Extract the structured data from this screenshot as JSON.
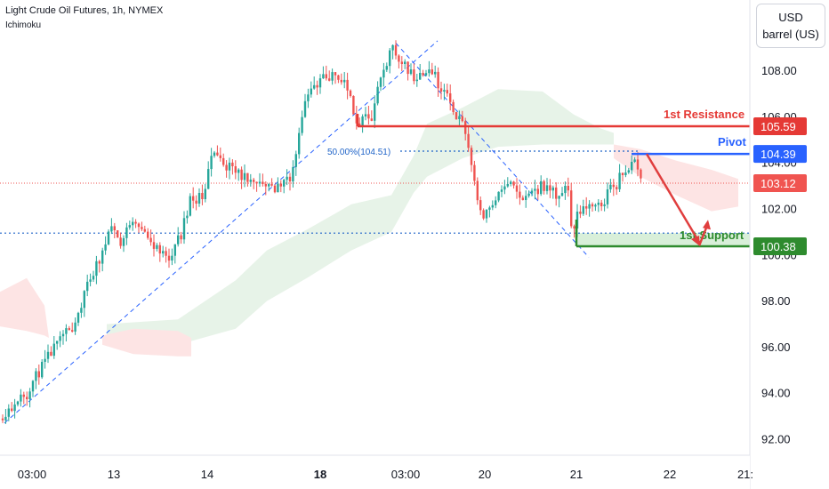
{
  "header": {
    "symbol_title": "Light Crude Oil Futures, 1h, NYMEX",
    "indicator": "Ichimoku"
  },
  "unit_button": {
    "currency": "USD",
    "unit": "barrel (US)"
  },
  "colors": {
    "up": "#26a69a",
    "down": "#ef5350",
    "resistance": "#e53935",
    "pivot": "#2962ff",
    "support": "#2e8b2e",
    "fib": "#1e63c8",
    "cloud_bull": "#e7f3e8",
    "cloud_bear": "#fde4e4"
  },
  "chart_data": {
    "type": "candlestick",
    "title": "Light Crude Oil Futures, 1h, NYMEX",
    "indicator": "Ichimoku",
    "x_ticks": [
      "03:00",
      "13",
      "14",
      "18",
      "03:00",
      "20",
      "21",
      "22",
      "21:"
    ],
    "y_ticks": [
      "92.00",
      "94.00",
      "96.00",
      "98.00",
      "100.00",
      "102.00",
      "104.00",
      "106.00",
      "108.00"
    ],
    "ylim": [
      91.3,
      110.0
    ],
    "current_price": "103.12",
    "fib_label": "50.00%(104.51)",
    "levels": [
      {
        "name": "1st Resistance",
        "value": "105.59"
      },
      {
        "name": "Pivot",
        "value": "104.39"
      },
      {
        "name": "1st Support",
        "value": "100.38"
      }
    ],
    "support_zone": [
      100.38,
      100.95
    ],
    "path": [
      [
        0,
        92.9
      ],
      [
        30,
        94.0
      ],
      [
        60,
        95.8
      ],
      [
        85,
        97.0
      ],
      [
        100,
        98.6
      ],
      [
        118,
        100.2
      ],
      [
        125,
        101.2
      ],
      [
        140,
        100.5
      ],
      [
        150,
        101.6
      ],
      [
        170,
        100.6
      ],
      [
        190,
        99.9
      ],
      [
        205,
        100.8
      ],
      [
        215,
        102.3
      ],
      [
        230,
        102.6
      ],
      [
        240,
        104.4
      ],
      [
        265,
        103.6
      ],
      [
        290,
        103.3
      ],
      [
        310,
        102.9
      ],
      [
        320,
        103.0
      ],
      [
        330,
        103.5
      ],
      [
        345,
        106.8
      ],
      [
        360,
        107.7
      ],
      [
        375,
        107.8
      ],
      [
        390,
        107.5
      ],
      [
        405,
        105.6
      ],
      [
        420,
        106.2
      ],
      [
        430,
        107.6
      ],
      [
        440,
        108.7
      ],
      [
        445,
        109.0
      ],
      [
        455,
        108.2
      ],
      [
        470,
        107.6
      ],
      [
        485,
        108.1
      ],
      [
        495,
        107.4
      ],
      [
        505,
        106.8
      ],
      [
        515,
        106.0
      ],
      [
        525,
        105.4
      ],
      [
        530,
        104.4
      ],
      [
        535,
        103.0
      ],
      [
        545,
        101.6
      ],
      [
        560,
        102.5
      ],
      [
        575,
        103.0
      ],
      [
        590,
        102.4
      ],
      [
        610,
        103.0
      ],
      [
        630,
        102.6
      ],
      [
        640,
        103.1
      ],
      [
        645,
        100.6
      ],
      [
        650,
        101.8
      ],
      [
        660,
        102.1
      ],
      [
        675,
        102.0
      ],
      [
        690,
        103.0
      ],
      [
        705,
        103.6
      ],
      [
        715,
        104.3
      ],
      [
        722,
        103.3
      ]
    ],
    "cloud_bull_upper": [
      [
        120,
        97.0
      ],
      [
        200,
        97.2
      ],
      [
        265,
        98.9
      ],
      [
        300,
        100.2
      ],
      [
        345,
        101.1
      ],
      [
        395,
        102.2
      ],
      [
        440,
        102.6
      ],
      [
        465,
        104.3
      ],
      [
        480,
        105.7
      ],
      [
        520,
        106.4
      ],
      [
        560,
        107.2
      ],
      [
        610,
        107.1
      ],
      [
        645,
        106.1
      ],
      [
        675,
        105.5
      ],
      [
        690,
        105.3
      ]
    ],
    "cloud_bull_lower": [
      [
        120,
        96.4
      ],
      [
        200,
        96.1
      ],
      [
        265,
        96.8
      ],
      [
        300,
        98.0
      ],
      [
        345,
        99.0
      ],
      [
        395,
        100.2
      ],
      [
        440,
        101.0
      ],
      [
        465,
        102.7
      ],
      [
        480,
        103.4
      ],
      [
        520,
        104.2
      ],
      [
        560,
        104.7
      ],
      [
        610,
        104.8
      ],
      [
        645,
        104.8
      ],
      [
        675,
        104.8
      ],
      [
        690,
        104.8
      ]
    ],
    "cloud_bear1_upper": [
      [
        0,
        98.4
      ],
      [
        30,
        99.0
      ],
      [
        50,
        97.8
      ],
      [
        55,
        96.4
      ]
    ],
    "cloud_bear1_lower": [
      [
        0,
        96.9
      ],
      [
        30,
        96.7
      ],
      [
        50,
        96.5
      ],
      [
        55,
        96.4
      ]
    ],
    "cloud_bear2_upper": [
      [
        115,
        96.5
      ],
      [
        150,
        96.8
      ],
      [
        200,
        96.7
      ],
      [
        215,
        96.4
      ]
    ],
    "cloud_bear2_lower": [
      [
        115,
        96.1
      ],
      [
        150,
        95.7
      ],
      [
        200,
        95.6
      ],
      [
        215,
        95.6
      ]
    ],
    "cloud_bear3_upper": [
      [
        690,
        104.8
      ],
      [
        720,
        104.6
      ],
      [
        760,
        104.1
      ],
      [
        800,
        103.7
      ],
      [
        830,
        103.3
      ]
    ],
    "cloud_bear3_lower": [
      [
        690,
        104.2
      ],
      [
        720,
        103.4
      ],
      [
        760,
        102.6
      ],
      [
        800,
        101.9
      ],
      [
        830,
        102.1
      ]
    ]
  }
}
